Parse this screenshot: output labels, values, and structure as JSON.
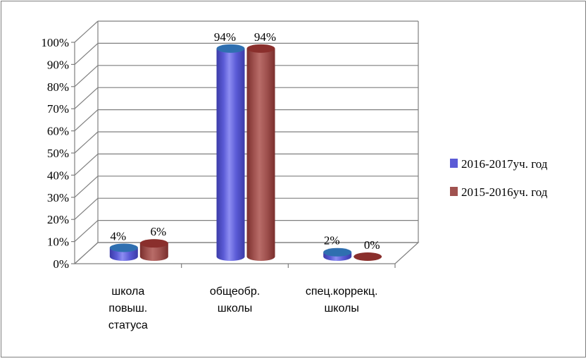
{
  "chart_data": {
    "type": "bar",
    "variant": "3d-cylinder",
    "title": "",
    "xlabel": "",
    "ylabel": "",
    "ylim": [
      0,
      100
    ],
    "y_ticks": [
      "0%",
      "10%",
      "20%",
      "30%",
      "40%",
      "50%",
      "60%",
      "70%",
      "80%",
      "90%",
      "100%"
    ],
    "grid": true,
    "legend_position": "right",
    "categories": [
      [
        "школа",
        "повыш.",
        "статуса"
      ],
      [
        "общеобр.",
        "школы"
      ],
      [
        "спец.коррекц.",
        "школы"
      ]
    ],
    "series": [
      {
        "name": "2016-2017уч. год",
        "values": [
          4,
          94,
          2
        ],
        "labels": [
          "4%",
          "94%",
          "2%"
        ],
        "color": "#5b5bd6"
      },
      {
        "name": "2015-2016уч. год",
        "values": [
          6,
          94,
          0
        ],
        "labels": [
          "6%",
          "94%",
          "0%"
        ],
        "color": "#a0524f"
      }
    ]
  }
}
